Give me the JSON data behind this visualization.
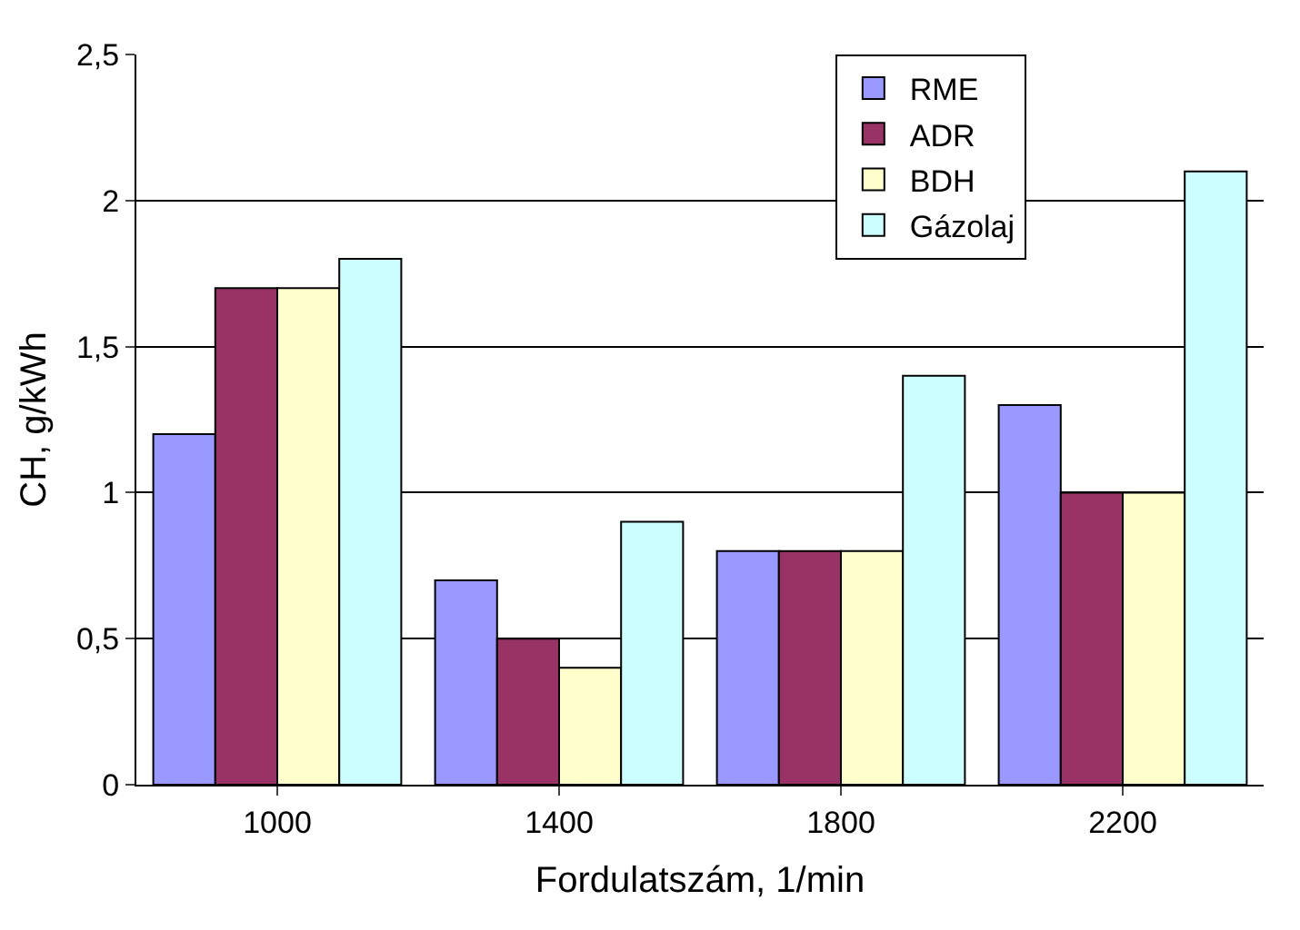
{
  "chart_data": {
    "type": "bar",
    "xlabel": "Fordulatszám, 1/min",
    "ylabel": "CH, g/kWh",
    "categories": [
      "1000",
      "1400",
      "1800",
      "2200"
    ],
    "series": [
      {
        "name": "RME",
        "color": "#9999ff",
        "values": [
          1.2,
          0.7,
          0.8,
          1.3
        ]
      },
      {
        "name": "ADR",
        "color": "#993366",
        "values": [
          1.7,
          0.5,
          0.8,
          1.0
        ]
      },
      {
        "name": "BDH",
        "color": "#ffffcc",
        "values": [
          1.7,
          0.4,
          0.8,
          1.0
        ]
      },
      {
        "name": "Gázolaj",
        "color": "#ccffff",
        "values": [
          1.8,
          0.9,
          1.4,
          2.1
        ]
      }
    ],
    "ylim": [
      0,
      2.5
    ],
    "yticks": [
      0,
      {
        "value": 0.5,
        "label": "0,5"
      },
      1,
      {
        "value": 1.5,
        "label": "1,5"
      },
      2,
      {
        "value": 2.5,
        "label": "2,5"
      }
    ],
    "grid": "y",
    "legend": "top right"
  }
}
